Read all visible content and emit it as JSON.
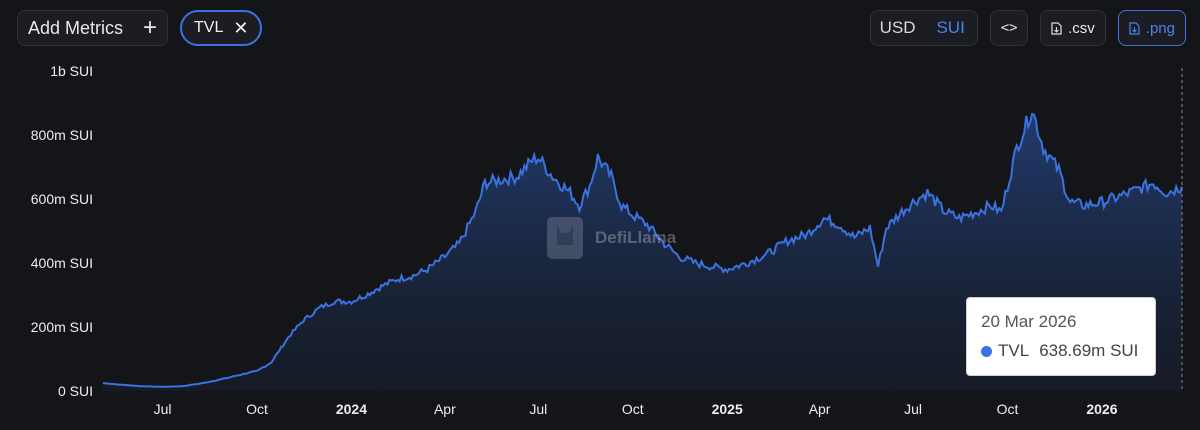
{
  "toolbar": {
    "add_metrics_label": "Add Metrics",
    "add_metrics_icon": "plus-icon",
    "metric_chip_label": "TVL",
    "metric_chip_icon": "close-icon",
    "currency_options": [
      "USD",
      "SUI"
    ],
    "currency_selected": "SUI",
    "embed_icon": "code-icon",
    "csv_label": ".csv",
    "png_label": ".png"
  },
  "colors": {
    "background": "#141518",
    "line": "#3a73e0",
    "accent": "#4a82ee",
    "tick_text": "#ededed"
  },
  "watermark": {
    "text": "DefiLlama"
  },
  "tooltip": {
    "date": "20 Mar 2026",
    "series": "TVL",
    "value": "638.69m SUI"
  },
  "chart_data": {
    "type": "area",
    "ylim": [
      0,
      1000000000
    ],
    "y_ticks": [
      {
        "value": 0,
        "label": "0 SUI"
      },
      {
        "value": 200000000,
        "label": "200m SUI"
      },
      {
        "value": 400000000,
        "label": "400m SUI"
      },
      {
        "value": 600000000,
        "label": "600m SUI"
      },
      {
        "value": 800000000,
        "label": "800m SUI"
      },
      {
        "value": 1000000000,
        "label": "1b SUI"
      }
    ],
    "x_ticks": [
      {
        "date": "2023-07-01",
        "label": "Jul",
        "bold": false
      },
      {
        "date": "2023-10-01",
        "label": "Oct",
        "bold": false
      },
      {
        "date": "2024-01-01",
        "label": "2024",
        "bold": true
      },
      {
        "date": "2024-04-01",
        "label": "Apr",
        "bold": false
      },
      {
        "date": "2024-07-01",
        "label": "Jul",
        "bold": false
      },
      {
        "date": "2024-10-01",
        "label": "Oct",
        "bold": false
      },
      {
        "date": "2025-01-01",
        "label": "2025",
        "bold": true
      },
      {
        "date": "2025-04-01",
        "label": "Apr",
        "bold": false
      },
      {
        "date": "2025-07-01",
        "label": "Jul",
        "bold": false
      },
      {
        "date": "2025-10-01",
        "label": "Oct",
        "bold": false
      },
      {
        "date": "2026-01-01",
        "label": "2026",
        "bold": true
      }
    ],
    "series": [
      {
        "points": [
          [
            "2023-05-04",
            25000000
          ],
          [
            "2023-05-20",
            20000000
          ],
          [
            "2023-06-10",
            15000000
          ],
          [
            "2023-07-01",
            13000000
          ],
          [
            "2023-07-20",
            15000000
          ],
          [
            "2023-08-10",
            25000000
          ],
          [
            "2023-09-01",
            40000000
          ],
          [
            "2023-09-20",
            55000000
          ],
          [
            "2023-10-01",
            62000000
          ],
          [
            "2023-10-15",
            90000000
          ],
          [
            "2023-11-01",
            170000000
          ],
          [
            "2023-11-15",
            220000000
          ],
          [
            "2023-12-01",
            260000000
          ],
          [
            "2023-12-15",
            280000000
          ],
          [
            "2024-01-01",
            280000000
          ],
          [
            "2024-01-15",
            300000000
          ],
          [
            "2024-02-01",
            330000000
          ],
          [
            "2024-02-15",
            350000000
          ],
          [
            "2024-03-01",
            360000000
          ],
          [
            "2024-03-15",
            380000000
          ],
          [
            "2024-04-01",
            420000000
          ],
          [
            "2024-04-15",
            460000000
          ],
          [
            "2024-05-01",
            560000000
          ],
          [
            "2024-05-10",
            650000000
          ],
          [
            "2024-05-25",
            660000000
          ],
          [
            "2024-06-10",
            670000000
          ],
          [
            "2024-06-25",
            720000000
          ],
          [
            "2024-07-01",
            730000000
          ],
          [
            "2024-07-15",
            670000000
          ],
          [
            "2024-08-01",
            620000000
          ],
          [
            "2024-08-10",
            580000000
          ],
          [
            "2024-08-20",
            640000000
          ],
          [
            "2024-08-28",
            730000000
          ],
          [
            "2024-09-10",
            670000000
          ],
          [
            "2024-09-20",
            580000000
          ],
          [
            "2024-10-01",
            550000000
          ],
          [
            "2024-10-15",
            520000000
          ],
          [
            "2024-11-01",
            460000000
          ],
          [
            "2024-11-15",
            420000000
          ],
          [
            "2024-12-01",
            400000000
          ],
          [
            "2024-12-15",
            390000000
          ],
          [
            "2025-01-01",
            380000000
          ],
          [
            "2025-01-20",
            400000000
          ],
          [
            "2025-02-10",
            430000000
          ],
          [
            "2025-03-01",
            470000000
          ],
          [
            "2025-03-20",
            490000000
          ],
          [
            "2025-04-05",
            540000000
          ],
          [
            "2025-04-20",
            520000000
          ],
          [
            "2025-05-05",
            480000000
          ],
          [
            "2025-05-20",
            510000000
          ],
          [
            "2025-05-28",
            390000000
          ],
          [
            "2025-06-05",
            510000000
          ],
          [
            "2025-06-20",
            560000000
          ],
          [
            "2025-07-01",
            590000000
          ],
          [
            "2025-07-15",
            620000000
          ],
          [
            "2025-08-01",
            560000000
          ],
          [
            "2025-08-15",
            540000000
          ],
          [
            "2025-09-01",
            560000000
          ],
          [
            "2025-09-15",
            580000000
          ],
          [
            "2025-09-25",
            560000000
          ],
          [
            "2025-10-01",
            640000000
          ],
          [
            "2025-10-10",
            760000000
          ],
          [
            "2025-10-25",
            880000000
          ],
          [
            "2025-11-05",
            760000000
          ],
          [
            "2025-11-20",
            690000000
          ],
          [
            "2025-12-01",
            590000000
          ],
          [
            "2025-12-15",
            580000000
          ],
          [
            "2026-01-01",
            590000000
          ],
          [
            "2026-01-20",
            610000000
          ],
          [
            "2026-02-05",
            630000000
          ],
          [
            "2026-02-20",
            650000000
          ],
          [
            "2026-03-05",
            620000000
          ],
          [
            "2026-03-20",
            638690000
          ]
        ]
      }
    ]
  }
}
